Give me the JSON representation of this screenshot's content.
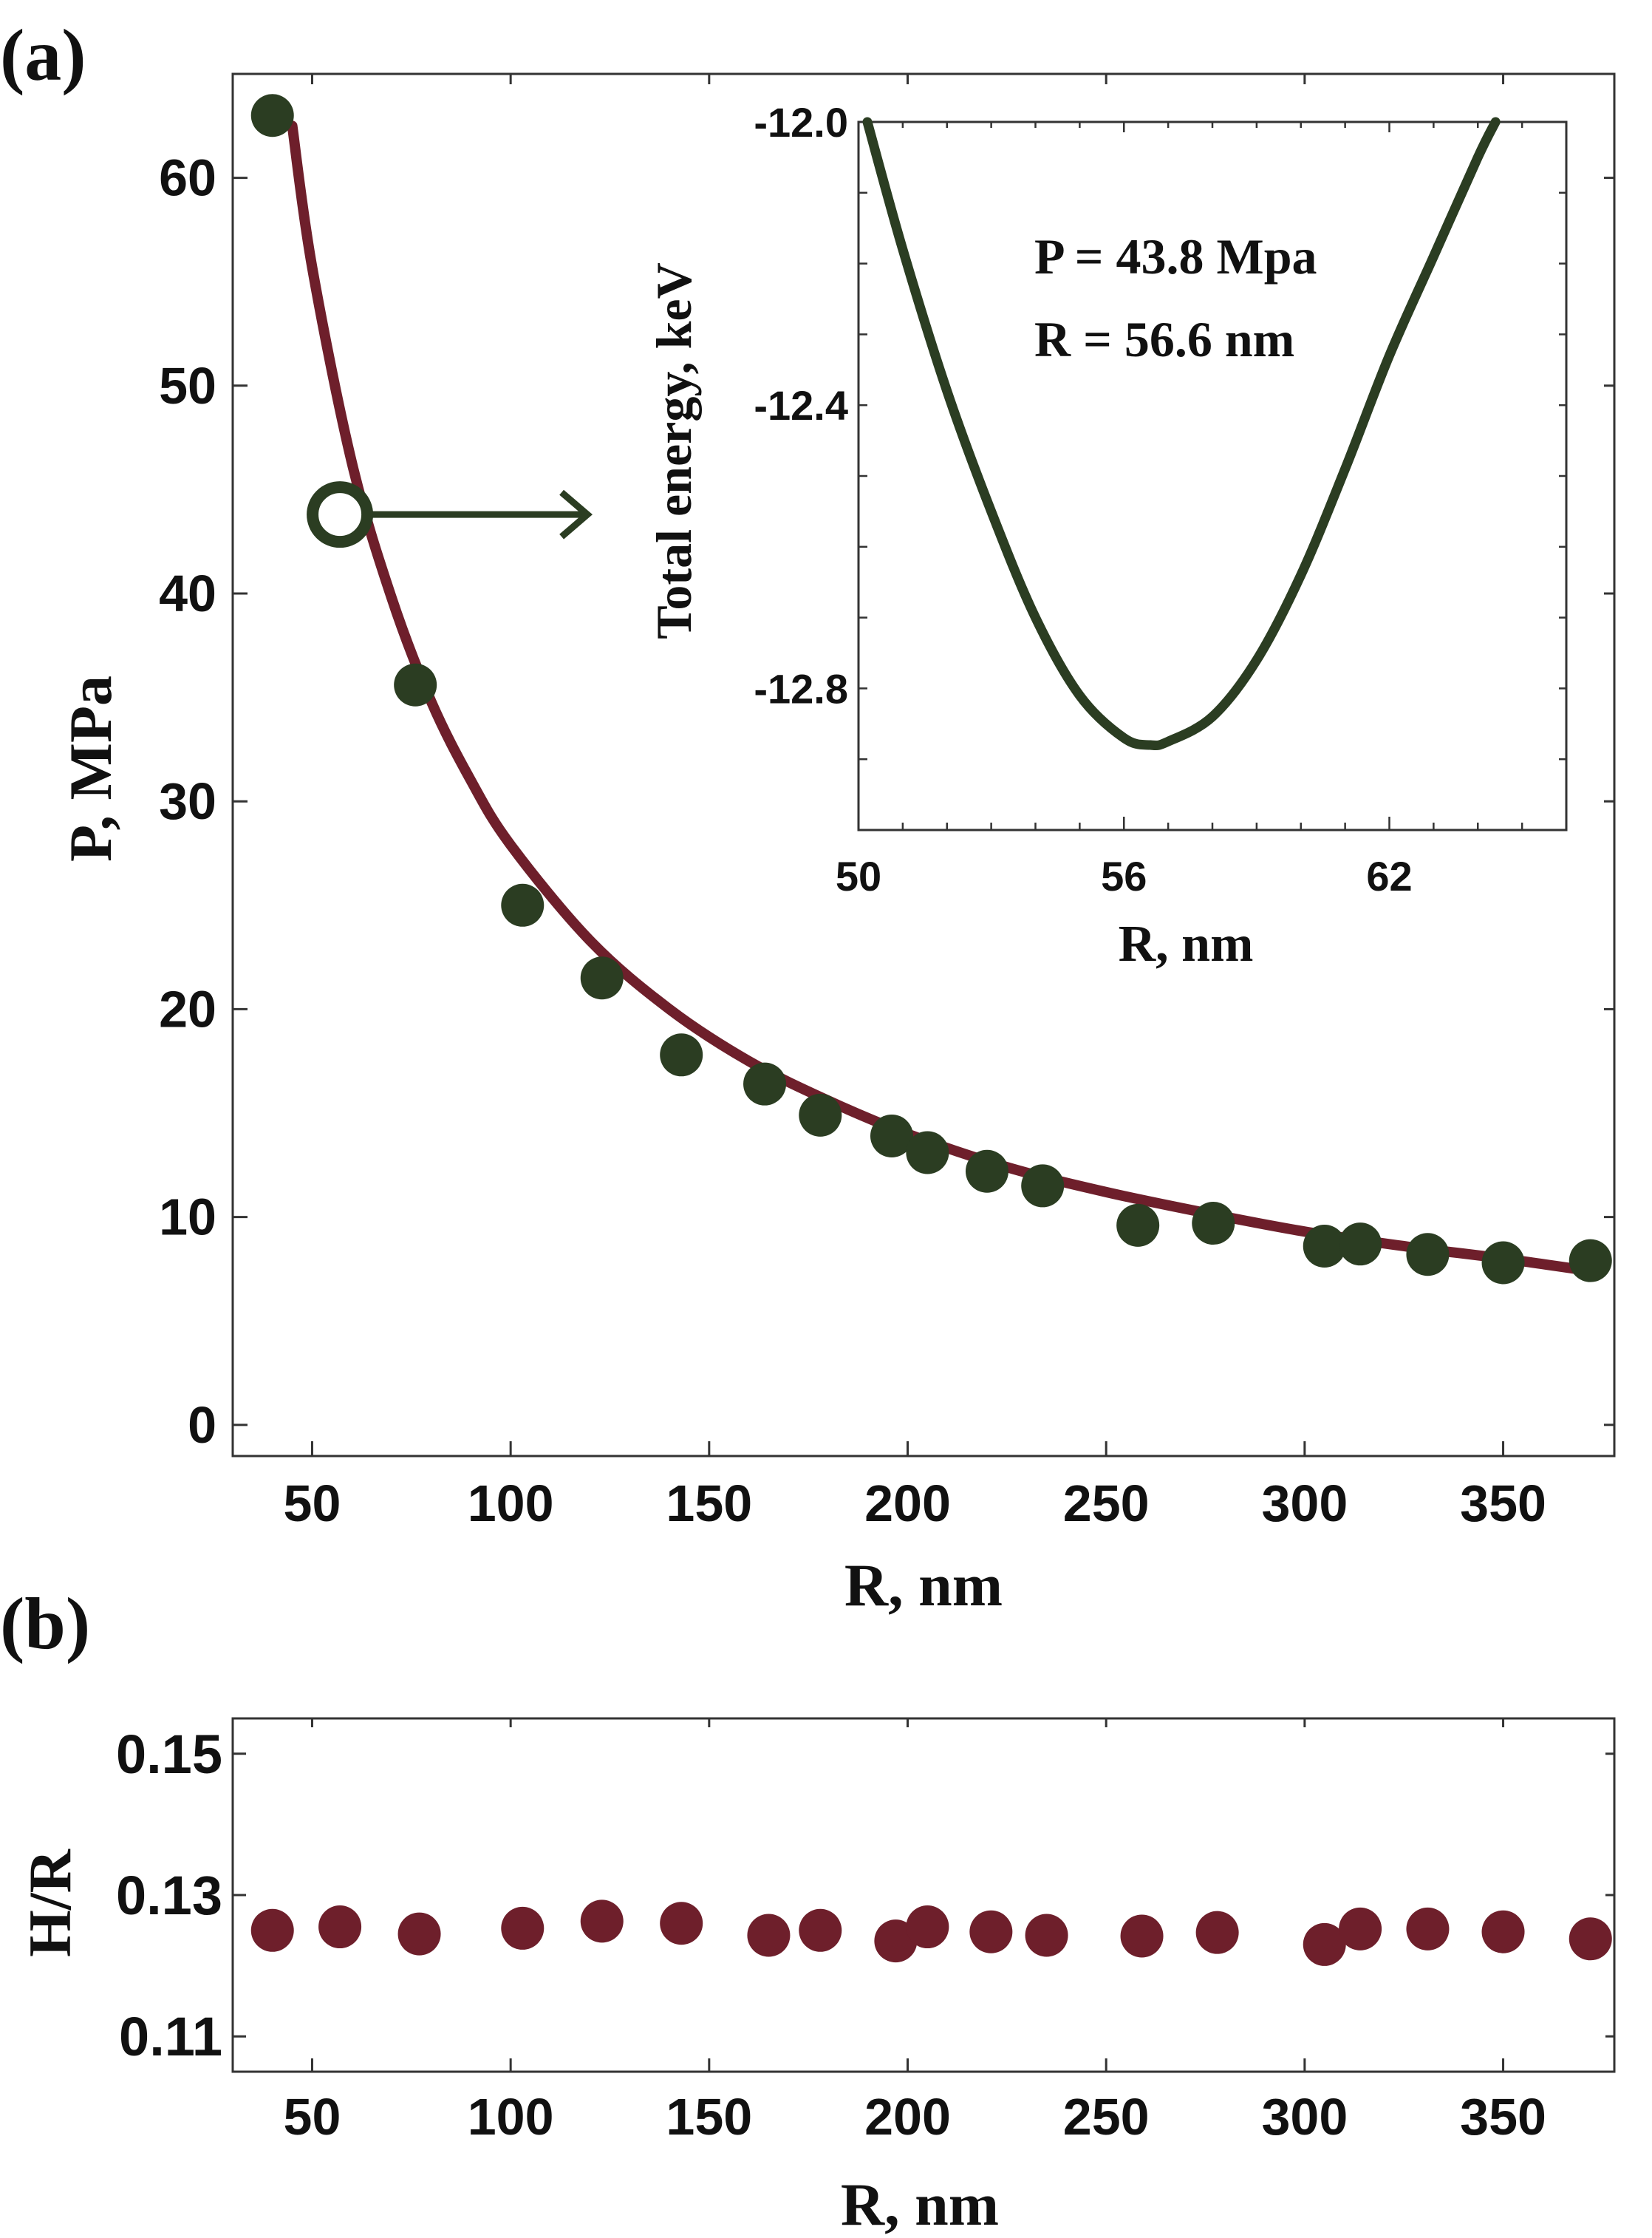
{
  "panel_a_label": "(a)",
  "panel_b_label": "(b)",
  "colors": {
    "curve": "#6e1f2b",
    "points_a": "#2b3d22",
    "points_b": "#6e1f2b",
    "inset_curve": "#2b3d22",
    "frame": "#333333"
  },
  "chart_data": [
    {
      "id": "a-main",
      "type": "scatter",
      "xlabel": "R, nm",
      "ylabel": "P, MPa",
      "xlim": [
        30,
        378
      ],
      "ylim": [
        -1.5,
        65
      ],
      "xticks": [
        50,
        100,
        150,
        200,
        250,
        300,
        350
      ],
      "yticks": [
        0,
        10,
        20,
        30,
        40,
        50,
        60
      ],
      "series": [
        {
          "kind": "points",
          "x": [
            40,
            76,
            103,
            123,
            143,
            164,
            178,
            196,
            205,
            220,
            234,
            258,
            277,
            305,
            314,
            331,
            350,
            372
          ],
          "y": [
            63,
            35.6,
            25,
            21.5,
            17.8,
            16.4,
            14.9,
            13.9,
            13.1,
            12.2,
            11.5,
            9.6,
            9.7,
            8.6,
            8.7,
            8.2,
            7.8,
            7.9
          ]
        },
        {
          "kind": "fit-curve",
          "x": [
            45,
            50,
            60,
            70,
            80,
            90,
            100,
            120,
            140,
            160,
            180,
            200,
            225,
            250,
            275,
            300,
            325,
            350,
            372
          ],
          "y": [
            62.5,
            55.7,
            46.3,
            39.8,
            34.8,
            31,
            27.9,
            23.3,
            20,
            17.5,
            15.6,
            14,
            12.4,
            11.2,
            10.2,
            9.3,
            8.6,
            8,
            7.4
          ]
        },
        {
          "kind": "highlight-point",
          "x": [
            57
          ],
          "y": [
            43.8
          ]
        }
      ]
    },
    {
      "id": "a-inset",
      "type": "line",
      "xlabel": "R, nm",
      "ylabel": "Total energy, keV",
      "xlim": [
        50,
        66
      ],
      "ylim": [
        -13.0,
        -12.0
      ],
      "xticks": [
        50,
        56,
        62
      ],
      "ytick_labels": [
        "-12.0",
        "-12.4",
        "-12.8"
      ],
      "ytick_values": [
        -12.0,
        -12.4,
        -12.8
      ],
      "annotations": [
        "P = 43.8 Mpa",
        "R = 56.6 nm"
      ],
      "series": [
        {
          "x": [
            50.2,
            51,
            52,
            53,
            54,
            55,
            56,
            56.6,
            57,
            58,
            59,
            60,
            61,
            62,
            63,
            64,
            64.4
          ],
          "y": [
            -12.0,
            -12.18,
            -12.38,
            -12.55,
            -12.7,
            -12.81,
            -12.87,
            -12.88,
            -12.875,
            -12.84,
            -12.76,
            -12.64,
            -12.49,
            -12.33,
            -12.19,
            -12.05,
            -12.0
          ]
        }
      ]
    },
    {
      "id": "b",
      "type": "scatter",
      "xlabel": "R, nm",
      "ylabel": "H/R",
      "xlim": [
        30,
        378
      ],
      "ylim": [
        0.105,
        0.155
      ],
      "xticks": [
        50,
        100,
        150,
        200,
        250,
        300,
        350
      ],
      "ytick_labels": [
        "0.15",
        "0.13",
        "0.11"
      ],
      "ytick_values": [
        0.15,
        0.13,
        0.11
      ],
      "series": [
        {
          "x": [
            40,
            57,
            77,
            103,
            123,
            143,
            165,
            178,
            197,
            205,
            221,
            235,
            259,
            278,
            305,
            314,
            331,
            350,
            372
          ],
          "y": [
            0.125,
            0.1255,
            0.1245,
            0.1253,
            0.1263,
            0.126,
            0.1243,
            0.125,
            0.1235,
            0.1255,
            0.1248,
            0.1243,
            0.1242,
            0.1247,
            0.123,
            0.1252,
            0.1252,
            0.1248,
            0.1238
          ]
        }
      ]
    }
  ]
}
